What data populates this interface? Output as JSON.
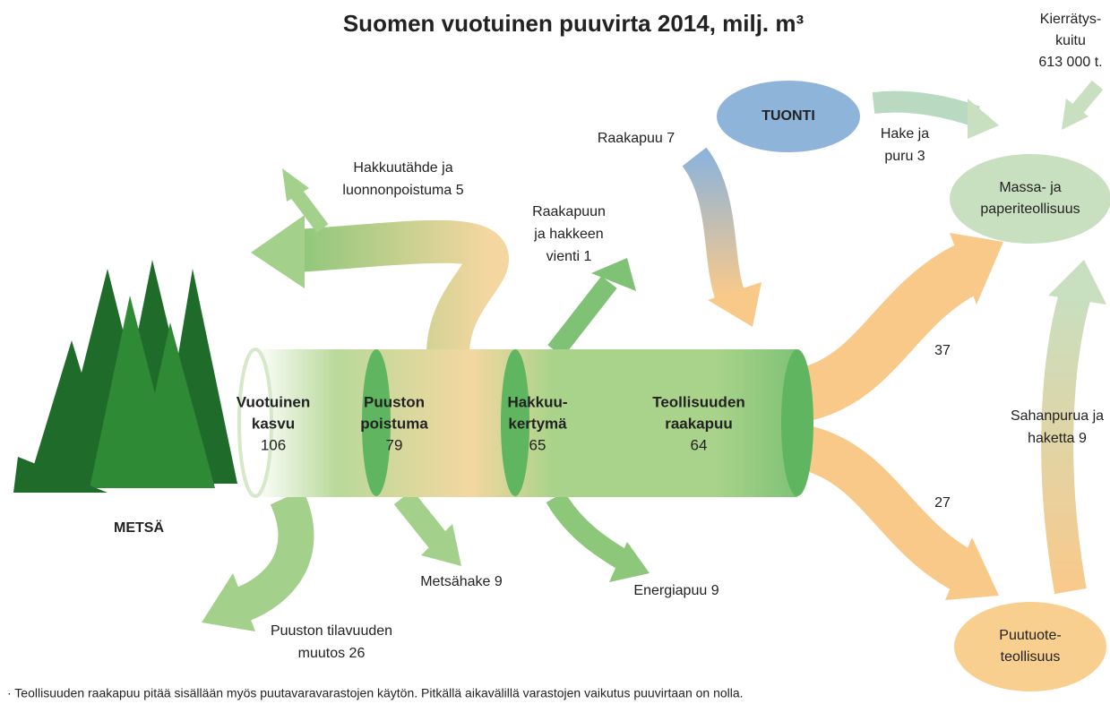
{
  "title": "Suomen vuotuinen puuvirta 2014, milj. m³",
  "recycled": [
    "Kierrätys-",
    "kuitu",
    "613 000 t."
  ],
  "nodes": [
    [
      "METSÄ"
    ],
    [
      "TUONTI"
    ],
    [
      "Massa- ja",
      "paperiteollisuus"
    ],
    [
      "Puutuote-",
      "teollisuus"
    ]
  ],
  "stages": [
    {
      "lines": [
        "Vuotuinen",
        "kasvu"
      ],
      "value": 106
    },
    {
      "lines": [
        "Puuston",
        "poistuma"
      ],
      "value": 79
    },
    {
      "lines": [
        "Hakkuu-",
        "kertymä"
      ],
      "value": 65
    },
    {
      "lines": [
        "Teollisuuden",
        "raakapuu"
      ],
      "value": 64
    }
  ],
  "flows": [
    [
      "Hakkuutähde ja",
      "luonnonpoistuma 5"
    ],
    [
      "Raakapuun",
      "ja hakkeen",
      "vienti 1"
    ],
    [
      "Raakapuu 7"
    ],
    [
      "Hake ja",
      "puru 3"
    ],
    [
      "37"
    ],
    [
      "27"
    ],
    [
      "Sahanpurua ja",
      "haketta 9"
    ],
    [
      "Metsähake 9"
    ],
    [
      "Energiapuu 9"
    ],
    [
      "Puuston tilavuuden",
      "muutos 26"
    ]
  ],
  "footnote": "· Teollisuuden raakapuu pitää sisällään myös puutavaravarastojen käytön. Pitkällä aikavälillä varastojen vaikutus puuvirtaan on nolla."
}
